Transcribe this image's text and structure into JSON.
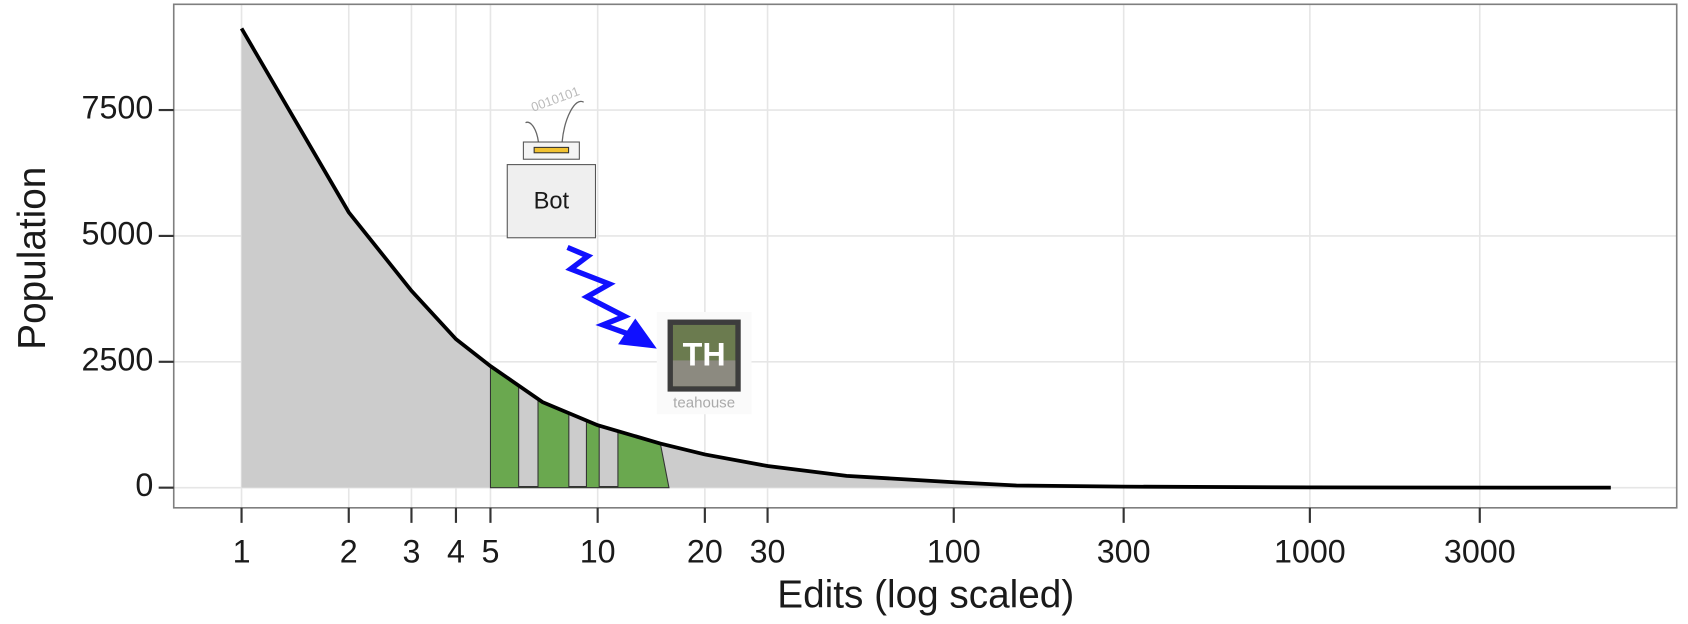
{
  "chart_data": {
    "type": "area",
    "x_label": "Edits (log scaled)",
    "y_label": "Population",
    "x": [
      1,
      2,
      3,
      4,
      5,
      7,
      10,
      15,
      20,
      30,
      50,
      100,
      150,
      300,
      1000,
      7000
    ],
    "values": [
      9120,
      5470,
      3910,
      2950,
      2415,
      1700,
      1240,
      876,
      660,
      430,
      235,
      107,
      43,
      21,
      5,
      0
    ],
    "color": "#cccccc",
    "line_color": "#000000",
    "x_scale": "log",
    "xlim": [
      0.645,
      10720
    ],
    "ylim": [
      -400,
      9600
    ],
    "xticks": [
      1,
      2,
      3,
      4,
      5,
      10,
      20,
      30,
      100,
      300,
      1000,
      3000
    ],
    "yticks": [
      0,
      2500,
      5000,
      7500
    ],
    "grid": true,
    "highlight": {
      "x": [
        5,
        15
      ],
      "color": "#6aa84f",
      "gaps": [
        [
          6,
          6.8
        ],
        [
          8.3,
          9.3
        ],
        [
          10.1,
          11.4
        ]
      ]
    },
    "annotations": {
      "bot": "Bot",
      "bits": "0010101",
      "icon": "TH",
      "icon_caption": "teahouse"
    }
  }
}
